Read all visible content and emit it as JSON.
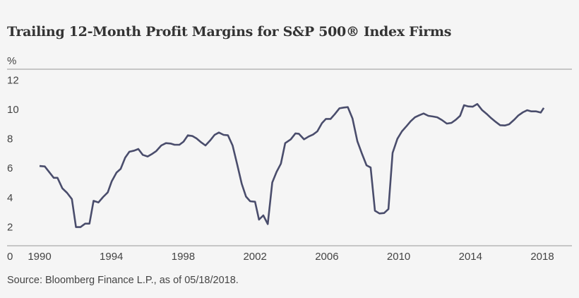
{
  "chart_data": {
    "type": "line",
    "title": "Trailing 12-Month Profit Margins for S&P 500®  Index Firms",
    "ylabel": "%",
    "xlabel": "",
    "source": "Source: Bloomberg Finance L.P., as of 05/18/2018.",
    "ylim": [
      0,
      12
    ],
    "xlim": [
      1990,
      2018
    ],
    "yticks": [
      "0",
      "2",
      "4",
      "6",
      "8",
      "10",
      "12"
    ],
    "xticks": [
      "1990",
      "1994",
      "1998",
      "2002",
      "2006",
      "2010",
      "2014",
      "2018"
    ],
    "grid": false,
    "line_color": "#4a4d6c",
    "series": [
      {
        "x": [
          1990.0,
          1990.29,
          1990.79,
          1991.0,
          1991.27,
          1991.53,
          1991.8,
          1992.03,
          1992.28,
          1992.54,
          1992.78,
          1993.01,
          1993.28,
          1993.54,
          1993.8,
          1994.02,
          1994.29,
          1994.52,
          1994.77,
          1995.0,
          1995.27,
          1995.5,
          1995.75,
          1996.02,
          1996.29,
          1996.5,
          1996.78,
          1997.04,
          1997.3,
          1997.52,
          1997.79,
          1998.02,
          1998.26,
          1998.52,
          1998.74,
          1999.0,
          1999.24,
          1999.5,
          1999.75,
          1999.99,
          2000.25,
          2000.49,
          2000.75,
          2001.01,
          2001.26,
          2001.5,
          2001.73,
          2002.0,
          2002.22,
          2002.46,
          2002.71,
          2002.96,
          2003.2,
          2003.44,
          2003.68,
          2003.99,
          2004.25,
          2004.44,
          2004.73,
          2004.99,
          2005.23,
          2005.47,
          2005.73,
          2005.95,
          2006.21,
          2006.44,
          2006.7,
          2006.94,
          2007.17,
          2007.43,
          2007.7,
          2007.94,
          2008.21,
          2008.44,
          2008.68,
          2008.93,
          2009.19,
          2009.43,
          2009.66,
          2009.93,
          2010.18,
          2010.45,
          2010.67,
          2010.91,
          2011.13,
          2011.39,
          2011.65,
          2011.92,
          2012.15,
          2012.41,
          2012.68,
          2012.94,
          2013.19,
          2013.42,
          2013.64,
          2013.88,
          2014.12,
          2014.38,
          2014.64,
          2014.89,
          2015.15,
          2015.41,
          2015.65,
          2015.91,
          2016.15,
          2016.44,
          2016.67,
          2016.92,
          2017.16,
          2017.39,
          2017.66,
          2017.91,
          2018.08
        ],
        "values": [
          6.1,
          6.07,
          5.3,
          5.3,
          4.58,
          4.28,
          3.85,
          1.94,
          1.94,
          2.18,
          2.18,
          3.73,
          3.62,
          3.99,
          4.31,
          5.06,
          5.66,
          5.91,
          6.67,
          7.07,
          7.15,
          7.26,
          6.86,
          6.75,
          6.94,
          7.12,
          7.5,
          7.66,
          7.63,
          7.55,
          7.55,
          7.76,
          8.19,
          8.14,
          7.98,
          7.71,
          7.5,
          7.84,
          8.22,
          8.38,
          8.22,
          8.19,
          7.5,
          6.19,
          4.9,
          4.02,
          3.7,
          3.67,
          2.45,
          2.74,
          2.15,
          4.98,
          5.7,
          6.26,
          7.66,
          7.92,
          8.32,
          8.3,
          7.92,
          8.11,
          8.24,
          8.46,
          9.02,
          9.31,
          9.31,
          9.63,
          10.03,
          10.08,
          10.11,
          9.34,
          7.79,
          6.99,
          6.15,
          6.0,
          3.06,
          2.87,
          2.9,
          3.17,
          6.99,
          7.95,
          8.46,
          8.83,
          9.15,
          9.42,
          9.55,
          9.68,
          9.52,
          9.47,
          9.42,
          9.23,
          8.99,
          9.04,
          9.26,
          9.52,
          10.24,
          10.16,
          10.14,
          10.32,
          9.92,
          9.66,
          9.36,
          9.1,
          8.88,
          8.86,
          8.94,
          9.26,
          9.55,
          9.76,
          9.9,
          9.82,
          9.82,
          9.74,
          10.06
        ]
      }
    ]
  }
}
